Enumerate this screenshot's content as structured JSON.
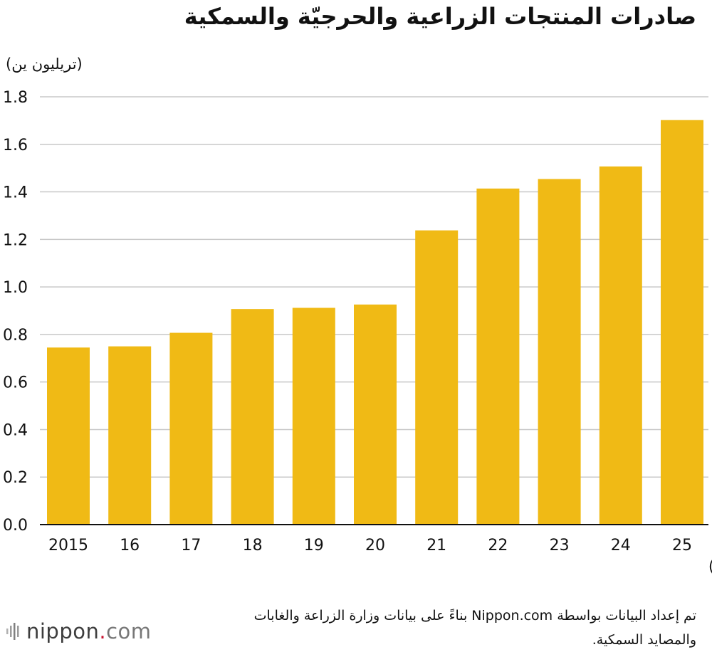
{
  "title": "صادرات المنتجات الزراعية والحرجيّة والسمكية",
  "source_lines": [
    "تم إعداد البيانات بواسطة Nippon.com بناءً على بيانات وزارة الزراعة والغابات",
    "والمصايد السمكية."
  ],
  "logo": {
    "name": "nippon",
    "dot": ".",
    "tld": "com",
    "icon": "nippon-logo-icon"
  },
  "colors": {
    "bar": "#F0BA15",
    "grid": "#c8c8c8",
    "axis": "#111111",
    "text": "#111111"
  },
  "chart_data": {
    "type": "bar",
    "title": "صادرات المنتجات الزراعية والحرجيّة والسمكية",
    "ylabel": "(تريليون ين)",
    "xlabel": "(السنة)",
    "categories": [
      "2015",
      "16",
      "17",
      "18",
      "19",
      "20",
      "21",
      "22",
      "23",
      "24",
      "25"
    ],
    "values": [
      0.745,
      0.75,
      0.807,
      0.907,
      0.912,
      0.926,
      1.238,
      1.414,
      1.454,
      1.507,
      1.702
    ],
    "ylim": [
      0,
      1.8
    ],
    "yticks": [
      "0.0",
      "0.2",
      "0.4",
      "0.6",
      "0.8",
      "1.0",
      "1.2",
      "1.4",
      "1.6",
      "1.8"
    ],
    "grid": true,
    "legend": "none"
  }
}
